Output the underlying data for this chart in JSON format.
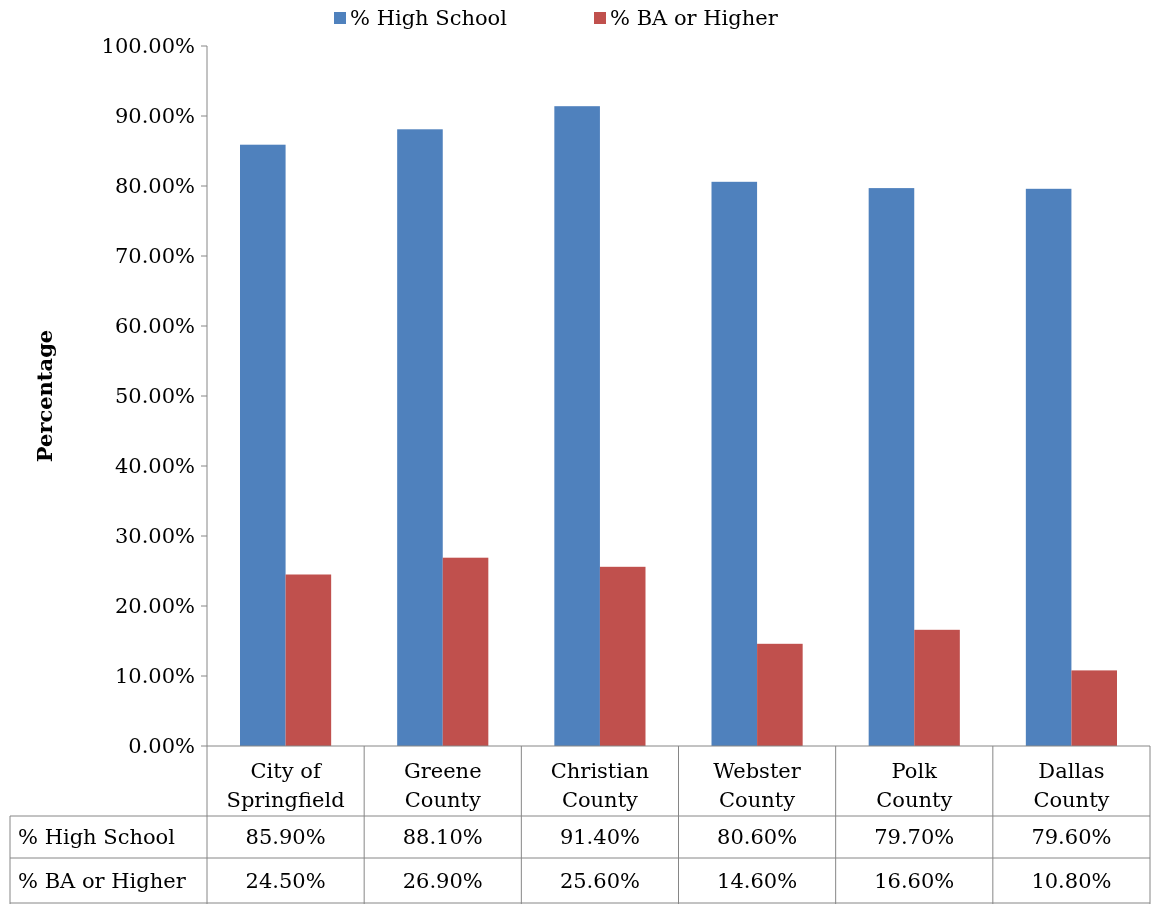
{
  "chart_data": {
    "type": "bar",
    "ylabel": "Percentage",
    "categories": [
      "City of Springfield",
      "Greene County",
      "Christian County",
      "Webster County",
      "Polk County",
      "Dallas County"
    ],
    "series": [
      {
        "name": "% High School",
        "color": "#4f81bd",
        "values": [
          85.9,
          88.1,
          91.4,
          80.6,
          79.7,
          79.6
        ],
        "value_labels": [
          "85.90%",
          "88.10%",
          "91.40%",
          "80.60%",
          "79.70%",
          "79.60%"
        ]
      },
      {
        "name": "% BA or Higher",
        "color": "#c0504d",
        "values": [
          24.5,
          26.9,
          25.6,
          14.6,
          16.6,
          10.8
        ],
        "value_labels": [
          "24.50%",
          "26.90%",
          "25.60%",
          "14.60%",
          "16.60%",
          "10.80%"
        ]
      }
    ],
    "ylim": [
      0,
      100
    ],
    "yticks": [
      {
        "value": 0,
        "label": "0.00%"
      },
      {
        "value": 10,
        "label": "10.00%"
      },
      {
        "value": 20,
        "label": "20.00%"
      },
      {
        "value": 30,
        "label": "30.00%"
      },
      {
        "value": 40,
        "label": "40.00%"
      },
      {
        "value": 50,
        "label": "50.00%"
      },
      {
        "value": 60,
        "label": "60.00%"
      },
      {
        "value": 70,
        "label": "70.00%"
      },
      {
        "value": 80,
        "label": "80.00%"
      },
      {
        "value": 90,
        "label": "90.00%"
      },
      {
        "value": 100,
        "label": "100.00%"
      }
    ],
    "legend": "top"
  }
}
